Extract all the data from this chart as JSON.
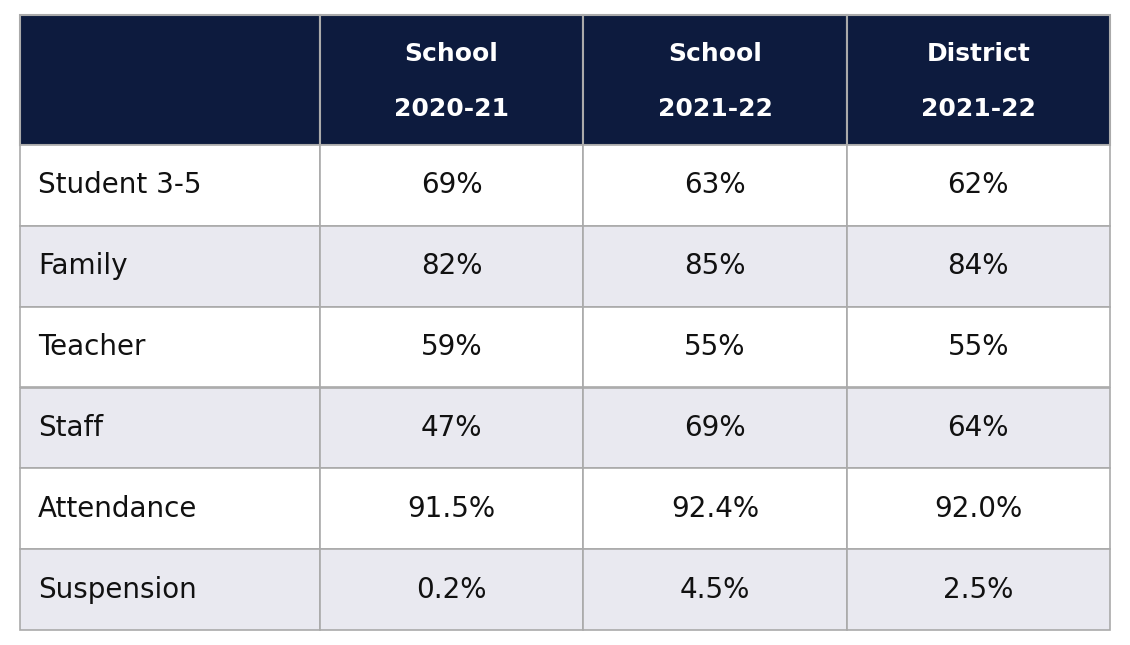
{
  "header_bg_color": "#0d1b3e",
  "header_text_color": "#ffffff",
  "row_labels": [
    "Student 3-5",
    "Family",
    "Teacher",
    "Staff",
    "Attendance",
    "Suspension"
  ],
  "col_headers": [
    [
      "School",
      "2020-21"
    ],
    [
      "School",
      "2021-22"
    ],
    [
      "District",
      "2021-22"
    ]
  ],
  "values": [
    [
      "69%",
      "63%",
      "62%"
    ],
    [
      "82%",
      "85%",
      "84%"
    ],
    [
      "59%",
      "55%",
      "55%"
    ],
    [
      "47%",
      "69%",
      "64%"
    ],
    [
      "91.5%",
      "92.4%",
      "92.0%"
    ],
    [
      "0.2%",
      "4.5%",
      "2.5%"
    ]
  ],
  "row_bg_colors": [
    "#ffffff",
    "#e9e9f0",
    "#ffffff",
    "#e9e9f0",
    "#ffffff",
    "#e9e9f0"
  ],
  "data_text_color": "#111111",
  "row_label_color": "#111111",
  "grid_color": "#aaaaaa",
  "fig_bg_color": "#ffffff",
  "header_fontsize": 18,
  "label_fontsize": 20,
  "value_fontsize": 20
}
